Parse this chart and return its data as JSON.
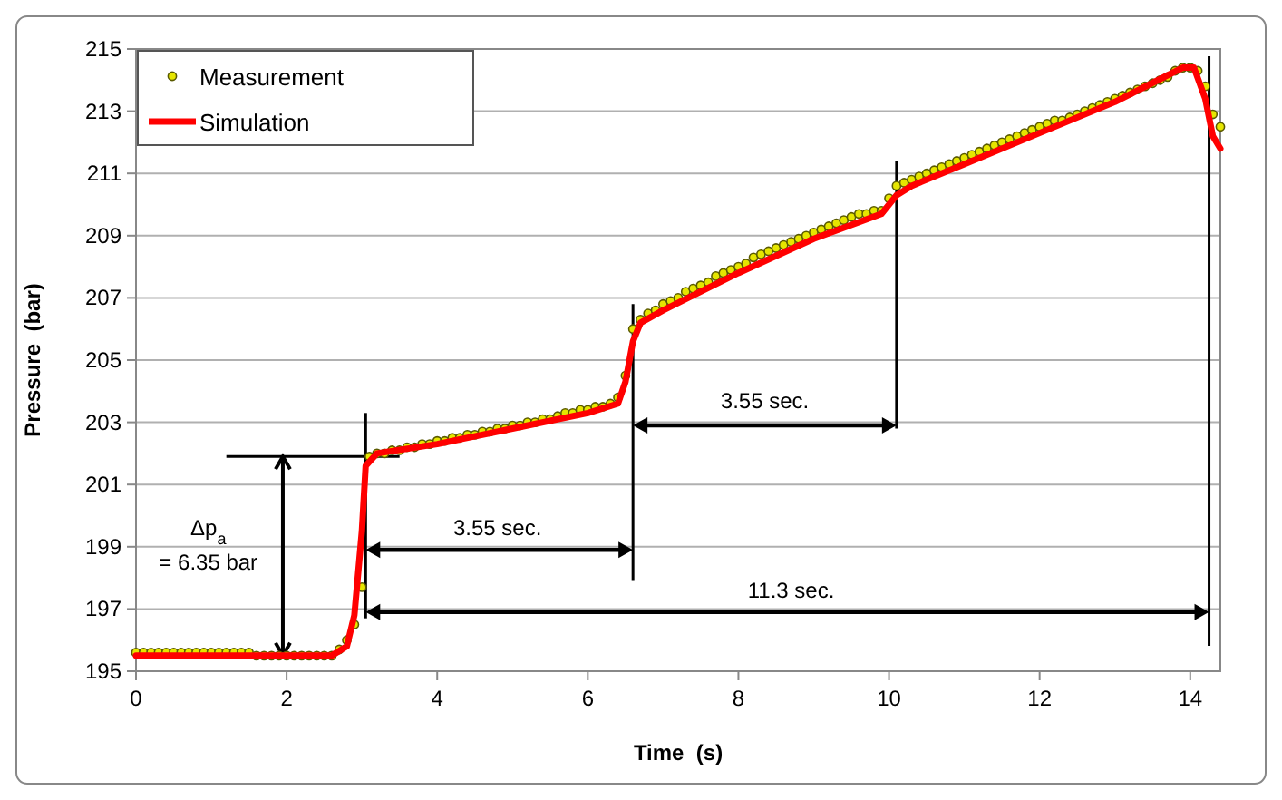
{
  "chart_data": {
    "type": "line",
    "xlabel": "Time  (s)",
    "ylabel": "Pressure  (bar)",
    "xlim": [
      0,
      14.4
    ],
    "ylim": [
      195,
      215
    ],
    "xticks": [
      0,
      2,
      4,
      6,
      8,
      10,
      12,
      14
    ],
    "yticks": [
      195,
      197,
      199,
      201,
      203,
      205,
      207,
      209,
      211,
      213,
      215
    ],
    "grid": "y",
    "legend": "top left",
    "series": [
      {
        "name": "Measurement",
        "type": "scatter",
        "marker": "circle",
        "color": "#e6e600",
        "x": [
          0,
          0.1,
          0.2,
          0.3,
          0.4,
          0.5,
          0.6,
          0.7,
          0.8,
          0.9,
          1.0,
          1.1,
          1.2,
          1.3,
          1.4,
          1.5,
          1.6,
          1.7,
          1.8,
          1.9,
          2.0,
          2.1,
          2.2,
          2.3,
          2.4,
          2.5,
          2.6,
          2.7,
          2.8,
          2.9,
          3.0,
          3.1,
          3.2,
          3.3,
          3.4,
          3.5,
          3.6,
          3.7,
          3.8,
          3.9,
          4.0,
          4.1,
          4.2,
          4.3,
          4.4,
          4.5,
          4.6,
          4.7,
          4.8,
          4.9,
          5.0,
          5.1,
          5.2,
          5.3,
          5.4,
          5.5,
          5.6,
          5.7,
          5.8,
          5.9,
          6.0,
          6.1,
          6.2,
          6.3,
          6.4,
          6.5,
          6.6,
          6.7,
          6.8,
          6.9,
          7.0,
          7.1,
          7.2,
          7.3,
          7.4,
          7.5,
          7.6,
          7.7,
          7.8,
          7.9,
          8.0,
          8.1,
          8.2,
          8.3,
          8.4,
          8.5,
          8.6,
          8.7,
          8.8,
          8.9,
          9.0,
          9.1,
          9.2,
          9.3,
          9.4,
          9.5,
          9.6,
          9.7,
          9.8,
          9.9,
          10.0,
          10.1,
          10.2,
          10.3,
          10.4,
          10.5,
          10.6,
          10.7,
          10.8,
          10.9,
          11.0,
          11.1,
          11.2,
          11.3,
          11.4,
          11.5,
          11.6,
          11.7,
          11.8,
          11.9,
          12.0,
          12.1,
          12.2,
          12.3,
          12.4,
          12.5,
          12.6,
          12.7,
          12.8,
          12.9,
          13.0,
          13.1,
          13.2,
          13.3,
          13.4,
          13.5,
          13.6,
          13.7,
          13.8,
          13.9,
          14.0,
          14.1,
          14.2,
          14.3,
          14.4
        ],
        "values": [
          195.6,
          195.6,
          195.6,
          195.6,
          195.6,
          195.6,
          195.6,
          195.6,
          195.6,
          195.6,
          195.6,
          195.6,
          195.6,
          195.6,
          195.6,
          195.6,
          195.5,
          195.5,
          195.5,
          195.5,
          195.5,
          195.5,
          195.5,
          195.5,
          195.5,
          195.5,
          195.5,
          195.7,
          196.0,
          196.5,
          197.7,
          201.9,
          202.0,
          202.0,
          202.1,
          202.1,
          202.2,
          202.2,
          202.3,
          202.3,
          202.4,
          202.4,
          202.5,
          202.5,
          202.6,
          202.6,
          202.7,
          202.7,
          202.8,
          202.8,
          202.9,
          202.9,
          203.0,
          203.0,
          203.1,
          203.1,
          203.2,
          203.3,
          203.3,
          203.4,
          203.4,
          203.5,
          203.5,
          203.6,
          203.8,
          204.5,
          206.0,
          206.3,
          206.5,
          206.6,
          206.8,
          206.9,
          207.0,
          207.2,
          207.3,
          207.4,
          207.5,
          207.7,
          207.8,
          207.9,
          208.0,
          208.1,
          208.3,
          208.4,
          208.5,
          208.6,
          208.7,
          208.8,
          208.9,
          209.0,
          209.1,
          209.2,
          209.3,
          209.4,
          209.5,
          209.6,
          209.7,
          209.7,
          209.8,
          209.8,
          210.2,
          210.6,
          210.7,
          210.8,
          210.9,
          211.0,
          211.1,
          211.2,
          211.3,
          211.4,
          211.5,
          211.6,
          211.7,
          211.8,
          211.9,
          212.0,
          212.1,
          212.2,
          212.3,
          212.4,
          212.5,
          212.6,
          212.7,
          212.7,
          212.8,
          212.9,
          213.0,
          213.1,
          213.2,
          213.3,
          213.4,
          213.5,
          213.6,
          213.7,
          213.8,
          213.9,
          214.0,
          214.1,
          214.3,
          214.4,
          214.4,
          214.3,
          213.8,
          212.9,
          212.5
        ]
      },
      {
        "name": "Simulation",
        "type": "line",
        "line_style": "solid",
        "color": "#ff0000",
        "x": [
          0,
          2.6,
          2.8,
          2.9,
          3.0,
          3.05,
          3.2,
          4,
          5,
          6,
          6.4,
          6.5,
          6.6,
          6.7,
          7,
          8,
          9,
          9.9,
          10.1,
          10.3,
          11,
          12,
          13,
          13.9,
          14.05,
          14.2,
          14.3,
          14.4
        ],
        "values": [
          195.5,
          195.5,
          195.8,
          196.8,
          199.5,
          201.6,
          202.0,
          202.3,
          202.8,
          203.3,
          203.6,
          204.3,
          205.6,
          206.2,
          206.6,
          207.8,
          208.9,
          209.7,
          210.3,
          210.6,
          211.3,
          212.3,
          213.3,
          214.4,
          214.4,
          213.4,
          212.2,
          211.8
        ]
      }
    ],
    "ref_lines": [
      {
        "axis": "x",
        "value": 14.25,
        "color": "#000000"
      }
    ],
    "annotations": [
      "Δp$_{a}$",
      "= 6.35 bar",
      "3.55 sec.",
      "3.55 sec.",
      "11.3 sec."
    ]
  }
}
